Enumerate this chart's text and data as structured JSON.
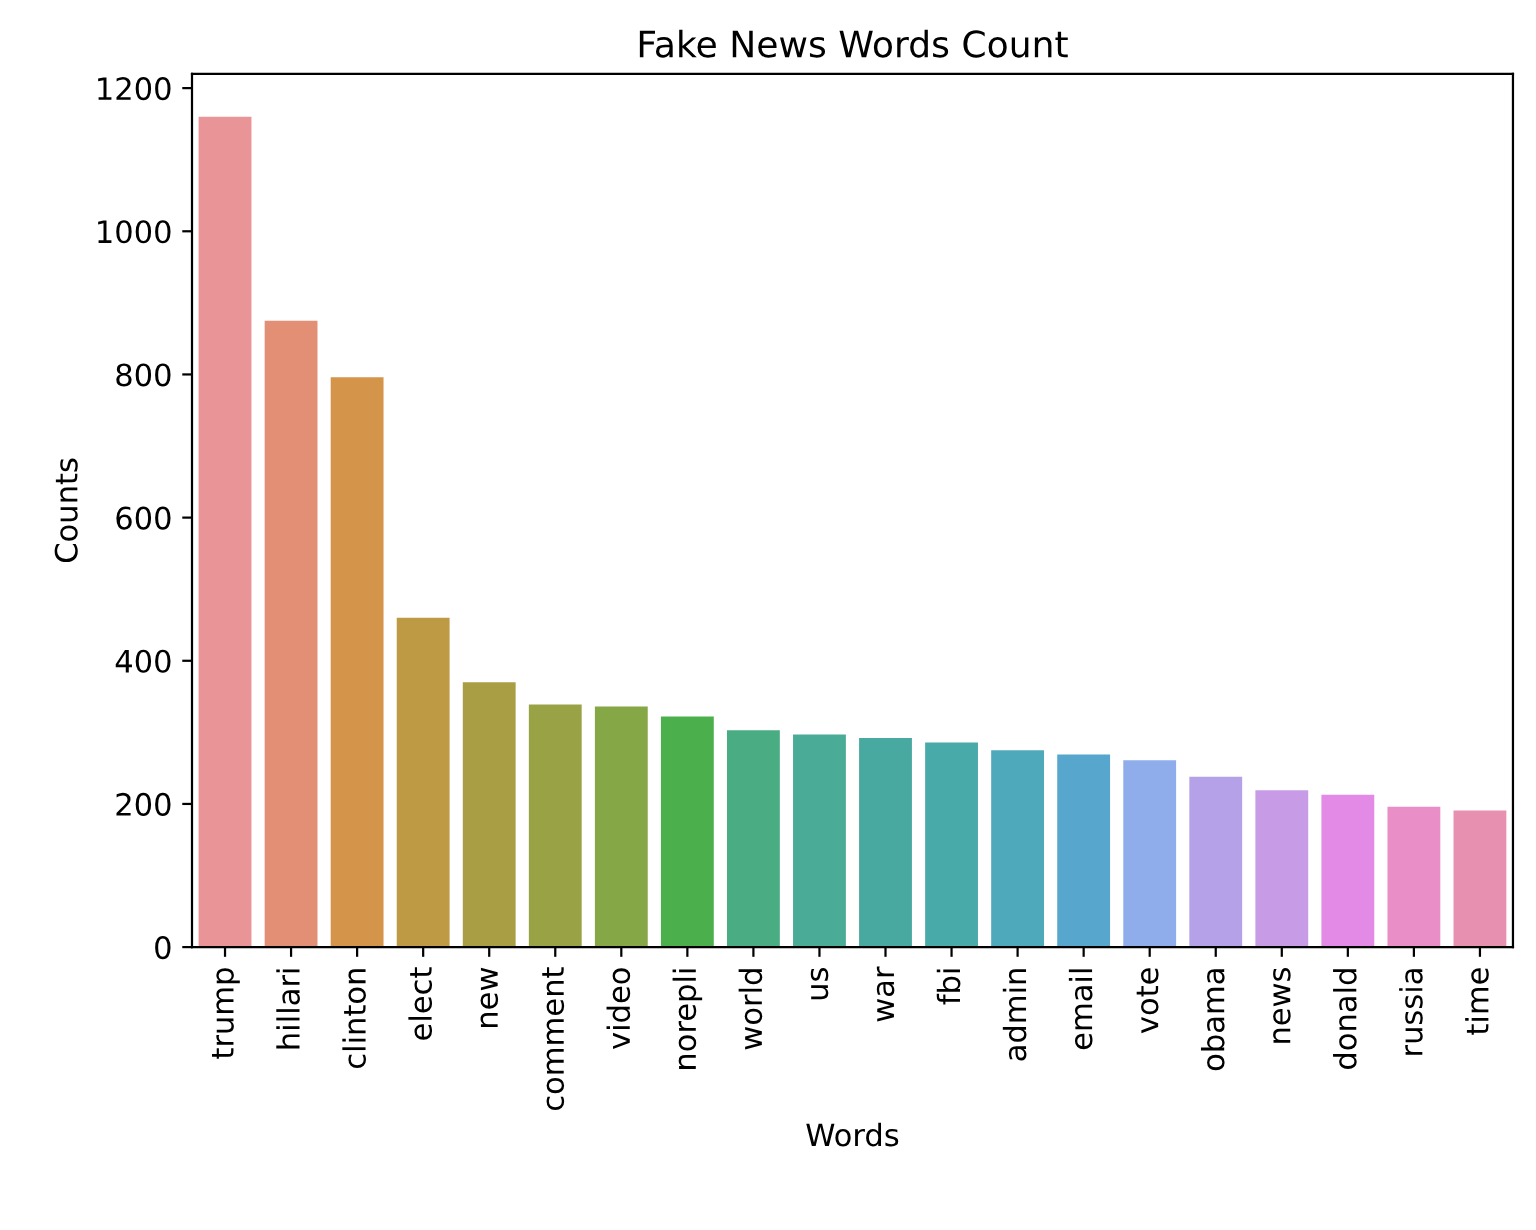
{
  "chart_data": {
    "type": "bar",
    "title": "Fake News Words Count",
    "xlabel": "Words",
    "ylabel": "Counts",
    "categories": [
      "trump",
      "hillari",
      "clinton",
      "elect",
      "new",
      "comment",
      "video",
      "norepli",
      "world",
      "us",
      "war",
      "fbi",
      "admin",
      "email",
      "vote",
      "obama",
      "news",
      "donald",
      "russia",
      "time"
    ],
    "values": [
      1160,
      875,
      796,
      460,
      370,
      339,
      336,
      322,
      303,
      297,
      292,
      286,
      275,
      269,
      261,
      238,
      219,
      213,
      196,
      191
    ],
    "colors": [
      "#e99497",
      "#e38f76",
      "#d4954b",
      "#bf9a44",
      "#aa9e44",
      "#99a345",
      "#86a745",
      "#4bb04c",
      "#4aac83",
      "#4aab96",
      "#48a9a0",
      "#49aaaa",
      "#4ea9bb",
      "#56a6cd",
      "#8fadea",
      "#b5a1e7",
      "#c89be6",
      "#e389e6",
      "#e98ec7",
      "#e890b0"
    ],
    "ylim": [
      0,
      1220
    ],
    "yticks": [
      0,
      200,
      400,
      600,
      800,
      1000,
      1200
    ],
    "grid": false,
    "legend": false
  }
}
